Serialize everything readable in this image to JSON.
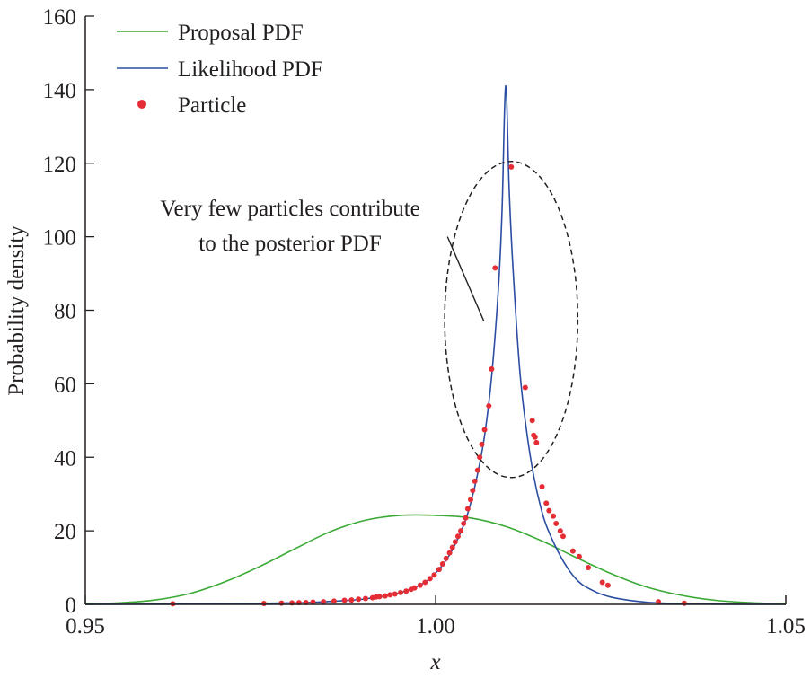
{
  "chart_data": {
    "type": "line",
    "xlabel": "x",
    "ylabel": "Probability density",
    "xlim": [
      0.95,
      1.05
    ],
    "ylim": [
      0,
      160
    ],
    "xticks": [
      0.95,
      1.0,
      1.05
    ],
    "xtick_labels": [
      "0.95",
      "1.00",
      "1.05"
    ],
    "yticks": [
      0,
      20,
      40,
      60,
      80,
      100,
      120,
      140,
      160
    ],
    "ytick_labels": [
      "0",
      "20",
      "40",
      "60",
      "80",
      "100",
      "120",
      "140",
      "160"
    ],
    "grid": false,
    "legend_position": "top-left",
    "series": [
      {
        "name": "Proposal PDF",
        "kind": "line",
        "color": "#3aaa35",
        "x": [
          0.95,
          0.955,
          0.96,
          0.965,
          0.97,
          0.975,
          0.98,
          0.985,
          0.99,
          0.995,
          1.0,
          1.005,
          1.01,
          1.015,
          1.02,
          1.025,
          1.03,
          1.035,
          1.04,
          1.045,
          1.05
        ],
        "y": [
          0.13,
          0.42,
          1.2,
          3.0,
          6.2,
          10.4,
          15.2,
          19.8,
          22.9,
          24.2,
          24.2,
          23.5,
          21.2,
          17.4,
          12.8,
          8.4,
          4.8,
          2.5,
          1.1,
          0.45,
          0.15
        ]
      },
      {
        "name": "Likelihood PDF",
        "kind": "line",
        "color": "#2b4ea2",
        "x": [
          0.95,
          0.96,
          0.97,
          0.98,
          0.985,
          0.99,
          0.995,
          0.998,
          1.0,
          1.002,
          1.004,
          1.005,
          1.006,
          1.007,
          1.008,
          1.009,
          1.0095,
          1.01,
          1.0105,
          1.011,
          1.012,
          1.013,
          1.014,
          1.015,
          1.016,
          1.018,
          1.02,
          1.022,
          1.025,
          1.03,
          1.035,
          1.04,
          1.05
        ],
        "y": [
          0.0,
          0.05,
          0.15,
          0.4,
          0.8,
          1.5,
          3.2,
          5.5,
          8.5,
          13.5,
          21.5,
          27.5,
          35.5,
          46.0,
          62.0,
          87.0,
          108.0,
          141.0,
          113.0,
          93.0,
          64.0,
          47.0,
          35.0,
          26.5,
          20.5,
          12.5,
          7.0,
          4.2,
          2.0,
          0.6,
          0.2,
          0.05,
          0.0
        ]
      },
      {
        "name": "Particle",
        "kind": "scatter",
        "color": "#e52d35",
        "x": [
          0.9625,
          0.9755,
          0.978,
          0.9795,
          0.9805,
          0.9815,
          0.9825,
          0.984,
          0.9855,
          0.987,
          0.988,
          0.989,
          0.99,
          0.991,
          0.9915,
          0.992,
          0.9928,
          0.9935,
          0.9942,
          0.995,
          0.9958,
          0.9965,
          0.997,
          0.9978,
          0.9985,
          0.9992,
          0.9998,
          1.0005,
          1.001,
          1.0015,
          1.002,
          1.0024,
          1.0028,
          1.0032,
          1.0036,
          1.004,
          1.0043,
          1.0046,
          1.005,
          1.0053,
          1.0056,
          1.006,
          1.0063,
          1.0066,
          1.007,
          1.0076,
          1.008,
          1.0085,
          1.0108,
          1.0128,
          1.0138,
          1.014,
          1.0142,
          1.0144,
          1.0152,
          1.0158,
          1.0162,
          1.0168,
          1.0172,
          1.0178,
          1.0182,
          1.0196,
          1.0205,
          1.0218,
          1.0238,
          1.0246,
          1.0318,
          1.0355
        ],
        "y": [
          0.15,
          0.25,
          0.35,
          0.4,
          0.45,
          0.5,
          0.6,
          0.7,
          0.9,
          1.1,
          1.2,
          1.4,
          1.6,
          1.8,
          2.0,
          2.1,
          2.3,
          2.6,
          2.8,
          3.2,
          3.6,
          4.1,
          4.5,
          5.2,
          6.0,
          7.0,
          8.0,
          9.5,
          11.0,
          12.5,
          14.0,
          15.5,
          17.0,
          18.5,
          20.0,
          22.0,
          23.5,
          26.0,
          28.5,
          31.0,
          33.5,
          36.5,
          40.0,
          43.5,
          47.5,
          54.0,
          64.0,
          91.5,
          119.0,
          59.0,
          50.0,
          46.0,
          45.5,
          44.0,
          32.0,
          27.5,
          25.5,
          24.0,
          22.0,
          20.0,
          18.5,
          14.5,
          13.0,
          10.0,
          6.0,
          5.2,
          0.7,
          0.3
        ]
      }
    ],
    "annotation": {
      "lines": [
        "Very few particles contribute",
        "to the posterior PDF"
      ],
      "ellipse": {
        "cx": 1.0108,
        "cy": 77.5,
        "rx": 0.0095,
        "ry": 43
      },
      "pointer_from": [
        1.0017,
        100
      ],
      "pointer_to": [
        1.0069,
        77
      ]
    }
  }
}
